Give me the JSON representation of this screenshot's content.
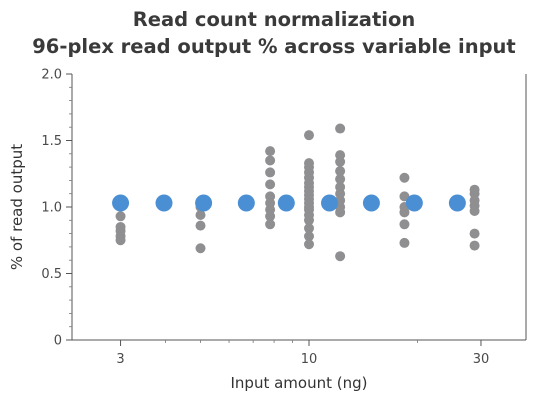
{
  "chart_data": {
    "type": "scatter",
    "title": "Read count normalization",
    "subtitle": "96-plex read output % across variable input",
    "xlabel": "Input amount (ng)",
    "ylabel": "% of read output",
    "xscale": "log",
    "xlim": [
      2.2,
      40
    ],
    "ylim": [
      0,
      2.0
    ],
    "xticks": [
      {
        "value": 3,
        "label": "3"
      },
      {
        "value": 10,
        "label": "10"
      },
      {
        "value": 30,
        "label": "30"
      }
    ],
    "yticks": [
      {
        "value": 0,
        "label": "0"
      },
      {
        "value": 0.5,
        "label": "0.5"
      },
      {
        "value": 1.0,
        "label": "1.0"
      },
      {
        "value": 1.5,
        "label": "1.5"
      },
      {
        "value": 2.0,
        "label": "2.0"
      }
    ],
    "grid": false,
    "legend": false,
    "series": [
      {
        "color": "#8f8f91",
        "points": [
          {
            "x": 3,
            "y": 0.75
          },
          {
            "x": 3,
            "y": 0.78
          },
          {
            "x": 3,
            "y": 0.82
          },
          {
            "x": 3,
            "y": 0.85
          },
          {
            "x": 3,
            "y": 0.93
          },
          {
            "x": 3,
            "y": 1.02
          },
          {
            "x": 5,
            "y": 0.69
          },
          {
            "x": 5,
            "y": 0.86
          },
          {
            "x": 5,
            "y": 0.94
          },
          {
            "x": 5,
            "y": 1.0
          },
          {
            "x": 5,
            "y": 1.04
          },
          {
            "x": 7.8,
            "y": 0.87
          },
          {
            "x": 7.8,
            "y": 0.93
          },
          {
            "x": 7.8,
            "y": 0.98
          },
          {
            "x": 7.8,
            "y": 1.03
          },
          {
            "x": 7.8,
            "y": 1.08
          },
          {
            "x": 7.8,
            "y": 1.17
          },
          {
            "x": 7.8,
            "y": 1.26
          },
          {
            "x": 7.8,
            "y": 1.35
          },
          {
            "x": 7.8,
            "y": 1.42
          },
          {
            "x": 10,
            "y": 0.72
          },
          {
            "x": 10,
            "y": 0.78
          },
          {
            "x": 10,
            "y": 0.84
          },
          {
            "x": 10,
            "y": 0.9
          },
          {
            "x": 10,
            "y": 0.94
          },
          {
            "x": 10,
            "y": 0.98
          },
          {
            "x": 10,
            "y": 1.0
          },
          {
            "x": 10,
            "y": 1.03
          },
          {
            "x": 10,
            "y": 1.06
          },
          {
            "x": 10,
            "y": 1.09
          },
          {
            "x": 10,
            "y": 1.12
          },
          {
            "x": 10,
            "y": 1.15
          },
          {
            "x": 10,
            "y": 1.18
          },
          {
            "x": 10,
            "y": 1.22
          },
          {
            "x": 10,
            "y": 1.26
          },
          {
            "x": 10,
            "y": 1.3
          },
          {
            "x": 10,
            "y": 1.33
          },
          {
            "x": 10,
            "y": 1.54
          },
          {
            "x": 12.2,
            "y": 0.63
          },
          {
            "x": 12.2,
            "y": 0.96
          },
          {
            "x": 12.2,
            "y": 1.0
          },
          {
            "x": 12.2,
            "y": 1.05
          },
          {
            "x": 12.2,
            "y": 1.1
          },
          {
            "x": 12.2,
            "y": 1.15
          },
          {
            "x": 12.2,
            "y": 1.21
          },
          {
            "x": 12.2,
            "y": 1.27
          },
          {
            "x": 12.2,
            "y": 1.34
          },
          {
            "x": 12.2,
            "y": 1.39
          },
          {
            "x": 12.2,
            "y": 1.59
          },
          {
            "x": 18.4,
            "y": 0.73
          },
          {
            "x": 18.4,
            "y": 0.87
          },
          {
            "x": 18.4,
            "y": 0.96
          },
          {
            "x": 18.4,
            "y": 1.0
          },
          {
            "x": 18.4,
            "y": 1.08
          },
          {
            "x": 18.4,
            "y": 1.22
          },
          {
            "x": 28.8,
            "y": 0.71
          },
          {
            "x": 28.8,
            "y": 0.8
          },
          {
            "x": 28.8,
            "y": 0.97
          },
          {
            "x": 28.8,
            "y": 1.01
          },
          {
            "x": 28.8,
            "y": 1.05
          },
          {
            "x": 28.8,
            "y": 1.1
          },
          {
            "x": 28.8,
            "y": 1.13
          }
        ]
      },
      {
        "color": "#4a8fd4",
        "points": [
          {
            "x": 3,
            "y": 1.03
          },
          {
            "x": 3.96,
            "y": 1.03
          },
          {
            "x": 5.1,
            "y": 1.03
          },
          {
            "x": 6.7,
            "y": 1.03
          },
          {
            "x": 8.65,
            "y": 1.03
          },
          {
            "x": 11.4,
            "y": 1.03
          },
          {
            "x": 14.9,
            "y": 1.03
          },
          {
            "x": 19.6,
            "y": 1.03
          },
          {
            "x": 25.8,
            "y": 1.03
          }
        ]
      }
    ]
  }
}
